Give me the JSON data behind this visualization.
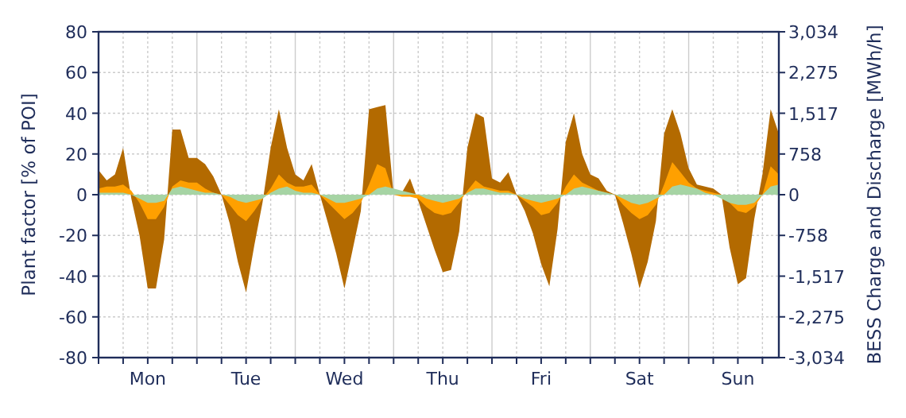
{
  "chart_data": {
    "type": "area",
    "ylabel": "Plant factor [% of POI]",
    "y2label": "BESS Charge and Discharge [MWh/h]",
    "categories": [
      null,
      null,
      null,
      null,
      null,
      null,
      "Mon",
      null,
      null,
      null,
      null,
      null,
      null,
      null,
      null,
      null,
      null,
      null,
      "Tue",
      null,
      null,
      null,
      null,
      null,
      null,
      null,
      null,
      null,
      null,
      null,
      "Wed",
      null,
      null,
      null,
      null,
      null,
      null,
      null,
      null,
      null,
      null,
      null,
      "Thu",
      null,
      null,
      null,
      null,
      null,
      null,
      null,
      null,
      null,
      null,
      null,
      "Fri",
      null,
      null,
      null,
      null,
      null,
      null,
      null,
      null,
      null,
      null,
      null,
      "Sat",
      null,
      null,
      null,
      null,
      null,
      null,
      null,
      null,
      null,
      null,
      null,
      "Sun",
      null,
      null,
      null,
      null,
      null
    ],
    "ylim": [
      -80,
      80
    ],
    "yticks": [
      -80,
      -60,
      -40,
      -20,
      0,
      20,
      40,
      60,
      80
    ],
    "y2lim": [
      -3034,
      3034
    ],
    "y2ticks": [
      {
        "value": -3034,
        "label": "-3,034"
      },
      {
        "value": -2275,
        "label": "-2,275"
      },
      {
        "value": -1517,
        "label": "-1,517"
      },
      -758,
      0,
      758,
      {
        "value": 1517,
        "label": "1,517"
      },
      {
        "value": 2275,
        "label": "2,275"
      },
      {
        "value": 3034,
        "label": "3,034"
      }
    ],
    "grid": true,
    "series": [
      {
        "color": "#b36a00",
        "values": [
          12,
          7,
          10,
          23,
          -2,
          -20,
          -46,
          -46,
          -22,
          32,
          32,
          18,
          18,
          15,
          9,
          0,
          -14,
          -33,
          -48,
          -25,
          -4,
          23,
          42,
          23,
          10,
          7,
          15,
          0,
          -14,
          -29,
          -46,
          -27,
          -8,
          42,
          43,
          44,
          0,
          1,
          8,
          -3,
          -15,
          -27,
          -38,
          -37,
          -18,
          23,
          40,
          38,
          8,
          6,
          11,
          0,
          -8,
          -19,
          -34,
          -45,
          -17,
          26,
          40,
          20,
          10,
          8,
          2,
          0,
          -14,
          -29,
          -46,
          -33,
          -13,
          30,
          42,
          30,
          13,
          5,
          4,
          3,
          0,
          -26,
          -44,
          -41,
          -12,
          10,
          42,
          30
        ]
      },
      {
        "color": "#ffa000",
        "values": [
          3,
          4,
          4,
          5,
          2,
          -4,
          -12,
          -12,
          -6,
          4,
          7,
          6,
          6,
          3,
          1,
          0,
          -5,
          -10,
          -13,
          -8,
          -2,
          3,
          10,
          6,
          4,
          4,
          5,
          0,
          -4,
          -8,
          -12,
          -9,
          -4,
          5,
          15,
          13,
          0,
          -1,
          -1,
          -2,
          -6,
          -9,
          -10,
          -9,
          -4,
          2,
          7,
          4,
          3,
          2,
          2,
          0,
          -3,
          -6,
          -10,
          -9,
          -4,
          4,
          10,
          6,
          4,
          2,
          1,
          0,
          -5,
          -9,
          -12,
          -10,
          -5,
          5,
          16,
          11,
          6,
          3,
          2,
          1,
          0,
          -4,
          -8,
          -9,
          -6,
          0,
          14,
          10
        ]
      },
      {
        "color": "#a6d4a4",
        "values": [
          1,
          1,
          1,
          1,
          0,
          -2,
          -4,
          -4,
          -3,
          3,
          4,
          3,
          2,
          1,
          1,
          0,
          -1,
          -3,
          -4,
          -3,
          -2,
          1,
          3,
          4,
          2,
          1,
          1,
          0,
          -2,
          -4,
          -4,
          -3,
          -2,
          0,
          3,
          4,
          3,
          2,
          1,
          0,
          -2,
          -3,
          -4,
          -3,
          -2,
          1,
          3,
          3,
          2,
          1,
          1,
          0,
          -2,
          -3,
          -4,
          -3,
          -2,
          0,
          3,
          4,
          3,
          2,
          1,
          0,
          -2,
          -4,
          -5,
          -4,
          -2,
          0,
          4,
          5,
          4,
          3,
          1,
          0,
          -2,
          -4,
          -5,
          -5,
          -4,
          0,
          4,
          5
        ]
      }
    ]
  }
}
